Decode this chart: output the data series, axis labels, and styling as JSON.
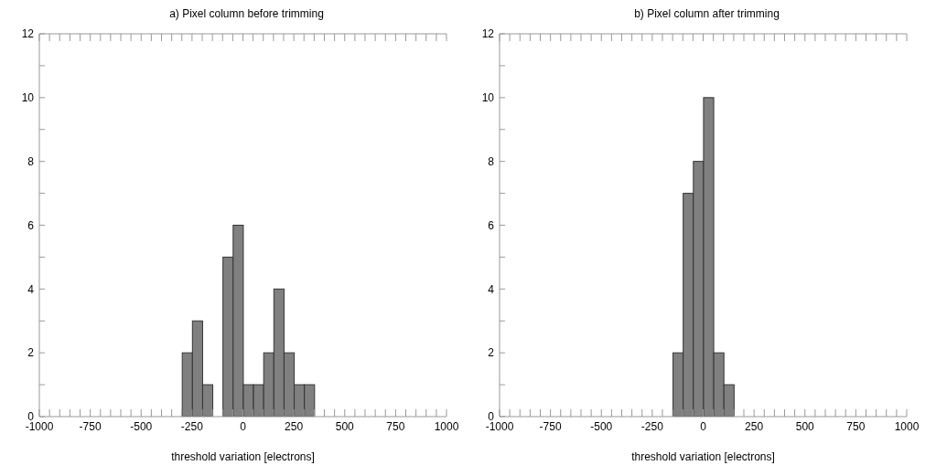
{
  "chart_data": [
    {
      "type": "histogram",
      "title": "a)   Pixel column before trimming",
      "xlabel": "threshold variation [electrons]",
      "color": "#808080",
      "bins": [
        -300,
        -250,
        -200,
        -150,
        -100,
        -50,
        0,
        50,
        100,
        150,
        200,
        250,
        300,
        350
      ],
      "values": [
        2,
        3,
        1,
        0,
        5,
        6,
        1,
        1,
        2,
        4,
        2,
        1,
        1
      ],
      "xlim": [
        -1000,
        1000
      ],
      "xticks": [
        -1000,
        {
          "value": -950,
          "label": null
        },
        {
          "value": -900,
          "label": null
        },
        {
          "value": -850,
          "label": null
        },
        {
          "value": -800,
          "label": null
        },
        -750,
        {
          "value": -700,
          "label": null
        },
        {
          "value": -650,
          "label": null
        },
        {
          "value": -600,
          "label": null
        },
        {
          "value": -550,
          "label": null
        },
        -500,
        {
          "value": -450,
          "label": null
        },
        {
          "value": -400,
          "label": null
        },
        {
          "value": -350,
          "label": null
        },
        {
          "value": -300,
          "label": null
        },
        -250,
        {
          "value": -200,
          "label": null
        },
        {
          "value": -150,
          "label": null
        },
        {
          "value": -100,
          "label": null
        },
        {
          "value": -50,
          "label": null
        },
        0,
        {
          "value": 50,
          "label": null
        },
        {
          "value": 100,
          "label": null
        },
        {
          "value": 150,
          "label": null
        },
        {
          "value": 200,
          "label": null
        },
        250,
        {
          "value": 300,
          "label": null
        },
        {
          "value": 350,
          "label": null
        },
        {
          "value": 400,
          "label": null
        },
        {
          "value": 450,
          "label": null
        },
        500,
        {
          "value": 550,
          "label": null
        },
        {
          "value": 600,
          "label": null
        },
        {
          "value": 650,
          "label": null
        },
        {
          "value": 700,
          "label": null
        },
        750,
        {
          "value": 800,
          "label": null
        },
        {
          "value": 850,
          "label": null
        },
        {
          "value": 900,
          "label": null
        },
        {
          "value": 950,
          "label": null
        },
        1000
      ],
      "ylim": [
        0,
        12
      ],
      "yticks": [
        0,
        {
          "value": 1,
          "label": null
        },
        2,
        {
          "value": 3,
          "label": null
        },
        4,
        {
          "value": 5,
          "label": null
        },
        6,
        {
          "value": 7,
          "label": null
        },
        8,
        {
          "value": 9,
          "label": null
        },
        10,
        {
          "value": 11,
          "label": null
        },
        12
      ]
    },
    {
      "type": "histogram",
      "title": "b)   Pixel column after trimming",
      "xlabel": "threshold variation [electrons]",
      "color": "#808080",
      "bins": [
        -150,
        -100,
        -50,
        0,
        50,
        100,
        150
      ],
      "values": [
        2,
        7,
        8,
        10,
        2,
        1
      ],
      "xlim": [
        -1000,
        1000
      ],
      "xticks": [
        -1000,
        {
          "value": -950,
          "label": null
        },
        {
          "value": -900,
          "label": null
        },
        {
          "value": -850,
          "label": null
        },
        {
          "value": -800,
          "label": null
        },
        -750,
        {
          "value": -700,
          "label": null
        },
        {
          "value": -650,
          "label": null
        },
        {
          "value": -600,
          "label": null
        },
        {
          "value": -550,
          "label": null
        },
        -500,
        {
          "value": -450,
          "label": null
        },
        {
          "value": -400,
          "label": null
        },
        {
          "value": -350,
          "label": null
        },
        {
          "value": -300,
          "label": null
        },
        -250,
        {
          "value": -200,
          "label": null
        },
        {
          "value": -150,
          "label": null
        },
        {
          "value": -100,
          "label": null
        },
        {
          "value": -50,
          "label": null
        },
        0,
        {
          "value": 50,
          "label": null
        },
        {
          "value": 100,
          "label": null
        },
        {
          "value": 150,
          "label": null
        },
        {
          "value": 200,
          "label": null
        },
        250,
        {
          "value": 300,
          "label": null
        },
        {
          "value": 350,
          "label": null
        },
        {
          "value": 400,
          "label": null
        },
        {
          "value": 450,
          "label": null
        },
        500,
        {
          "value": 550,
          "label": null
        },
        {
          "value": 600,
          "label": null
        },
        {
          "value": 650,
          "label": null
        },
        {
          "value": 700,
          "label": null
        },
        750,
        {
          "value": 800,
          "label": null
        },
        {
          "value": 850,
          "label": null
        },
        {
          "value": 900,
          "label": null
        },
        {
          "value": 950,
          "label": null
        },
        1000
      ],
      "ylim": [
        0,
        12
      ],
      "yticks": [
        0,
        {
          "value": 1,
          "label": null
        },
        2,
        {
          "value": 3,
          "label": null
        },
        4,
        {
          "value": 5,
          "label": null
        },
        6,
        {
          "value": 7,
          "label": null
        },
        8,
        {
          "value": 9,
          "label": null
        },
        10,
        {
          "value": 11,
          "label": null
        },
        12
      ]
    }
  ]
}
